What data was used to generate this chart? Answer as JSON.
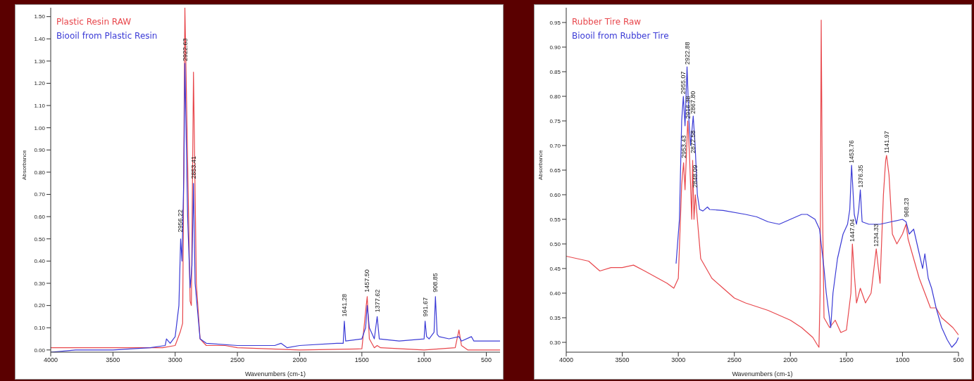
{
  "chart_data": [
    {
      "type": "line",
      "xlabel": "Wavenumbers (cm-1)",
      "ylabel": "Absorbance",
      "legend": "top left",
      "xlim": [
        4000,
        390
      ],
      "xticks": [
        4000,
        3500,
        3000,
        2500,
        2000,
        1500,
        1000,
        500
      ],
      "ylim": [
        -0.01,
        1.54
      ],
      "yticks": [
        {
          "value": 0,
          "label": "0.00"
        },
        {
          "value": 0.1,
          "label": "0.10"
        },
        {
          "value": 0.2,
          "label": "0.20"
        },
        {
          "value": 0.3,
          "label": "0.30"
        },
        {
          "value": 0.4,
          "label": "0.40"
        },
        {
          "value": 0.5,
          "label": "0.50"
        },
        {
          "value": 0.6,
          "label": "0.60"
        },
        {
          "value": 0.7,
          "label": "0.70"
        },
        {
          "value": 0.8,
          "label": "0.80"
        },
        {
          "value": 0.9,
          "label": "0.90"
        },
        {
          "value": 1.0,
          "label": "1.00"
        },
        {
          "value": 1.1,
          "label": "1.10"
        },
        {
          "value": 1.2,
          "label": "1.20"
        },
        {
          "value": 1.3,
          "label": "1.30"
        },
        {
          "value": 1.4,
          "label": "1.40"
        },
        {
          "value": 1.5,
          "label": "1.50"
        }
      ],
      "series": [
        {
          "name": "Plastic Resin RAW",
          "color": "#e8474c",
          "x": [
            4000,
            3500,
            3100,
            3000,
            2960,
            2940,
            2922,
            2880,
            2870,
            2853,
            2830,
            2800,
            2750,
            2600,
            2500,
            2000,
            1500,
            1465,
            1457,
            1440,
            1400,
            1377,
            1350,
            1000,
            750,
            720,
            700,
            650,
            390
          ],
          "values": [
            0.01,
            0.01,
            0.01,
            0.02,
            0.08,
            0.12,
            1.54,
            0.22,
            0.2,
            1.25,
            0.3,
            0.05,
            0.02,
            0.02,
            0.01,
            0.0,
            0.005,
            0.2,
            0.24,
            0.05,
            0.01,
            0.02,
            0.01,
            0.0,
            0.01,
            0.09,
            0.02,
            0.0,
            0.0
          ]
        },
        {
          "name": "Biooil from Plastic Resin",
          "color": "#3b3bd6",
          "x": [
            4000,
            3800,
            3500,
            3200,
            3080,
            3070,
            3040,
            3000,
            2970,
            2956,
            2945,
            2930,
            2922,
            2900,
            2880,
            2865,
            2853,
            2840,
            2800,
            2750,
            2500,
            2200,
            2150,
            2100,
            2000,
            1700,
            1650,
            1641,
            1630,
            1500,
            1470,
            1457,
            1440,
            1400,
            1377,
            1360,
            1200,
            1000,
            992,
            980,
            960,
            920,
            909,
            895,
            880,
            800,
            720,
            700,
            620,
            600,
            390
          ],
          "values": [
            -0.01,
            0.0,
            0.0,
            0.01,
            0.02,
            0.05,
            0.03,
            0.06,
            0.2,
            0.5,
            0.4,
            0.8,
            1.29,
            0.6,
            0.28,
            0.38,
            0.75,
            0.3,
            0.05,
            0.03,
            0.02,
            0.02,
            0.03,
            0.01,
            0.02,
            0.03,
            0.03,
            0.13,
            0.04,
            0.05,
            0.1,
            0.2,
            0.1,
            0.05,
            0.15,
            0.05,
            0.04,
            0.05,
            0.13,
            0.06,
            0.05,
            0.08,
            0.24,
            0.07,
            0.06,
            0.05,
            0.06,
            0.04,
            0.06,
            0.04,
            0.04
          ]
        }
      ],
      "annotations": [
        {
          "text": "2956.22",
          "x": 2956,
          "y": 0.52
        },
        {
          "text": "2922.63",
          "x": 2922,
          "y": 1.29
        },
        {
          "text": "2853.41",
          "x": 2853,
          "y": 0.76
        },
        {
          "text": "1641.28",
          "x": 1641,
          "y": 0.14
        },
        {
          "text": "1457.50",
          "x": 1457,
          "y": 0.25
        },
        {
          "text": "1377.62",
          "x": 1377,
          "y": 0.16
        },
        {
          "text": "991.67",
          "x": 992,
          "y": 0.14
        },
        {
          "text": "908.85",
          "x": 909,
          "y": 0.25
        }
      ]
    },
    {
      "type": "line",
      "xlabel": "Wavenumbers (cm-1)",
      "ylabel": "Absorbance",
      "legend": "top left",
      "xlim": [
        4000,
        500
      ],
      "xticks": [
        4000,
        3500,
        3000,
        2500,
        2000,
        1500,
        1000,
        500
      ],
      "ylim": [
        0.28,
        0.98
      ],
      "yticks": [
        {
          "value": 0.3,
          "label": "0.30"
        },
        {
          "value": 0.35,
          "label": "0.35"
        },
        {
          "value": 0.4,
          "label": "0.40"
        },
        {
          "value": 0.45,
          "label": "0.45"
        },
        {
          "value": 0.5,
          "label": "0.50"
        },
        {
          "value": 0.55,
          "label": "0.55"
        },
        {
          "value": 0.6,
          "label": "0.60"
        },
        {
          "value": 0.65,
          "label": "0.65"
        },
        {
          "value": 0.7,
          "label": "0.70"
        },
        {
          "value": 0.75,
          "label": "0.75"
        },
        {
          "value": 0.8,
          "label": "0.80"
        },
        {
          "value": 0.85,
          "label": "0.85"
        },
        {
          "value": 0.9,
          "label": "0.90"
        },
        {
          "value": 0.95,
          "label": "0.95"
        }
      ],
      "series": [
        {
          "name": "Rubber Tire Raw",
          "color": "#e8474c",
          "x": [
            4000,
            3800,
            3700,
            3600,
            3500,
            3400,
            3300,
            3100,
            3040,
            3000,
            2970,
            2953,
            2940,
            2916,
            2900,
            2880,
            2872,
            2860,
            2848,
            2830,
            2800,
            2700,
            2600,
            2500,
            2400,
            2200,
            2000,
            1900,
            1800,
            1760,
            1745,
            1735,
            1725,
            1715,
            1700,
            1650,
            1600,
            1550,
            1500,
            1460,
            1447,
            1430,
            1410,
            1376,
            1330,
            1280,
            1234,
            1200,
            1170,
            1150,
            1142,
            1120,
            1090,
            1050,
            1000,
            968,
            950,
            900,
            850,
            800,
            750,
            700,
            650,
            600,
            550,
            500
          ],
          "values": [
            0.475,
            0.465,
            0.445,
            0.452,
            0.452,
            0.457,
            0.445,
            0.42,
            0.41,
            0.43,
            0.62,
            0.665,
            0.61,
            0.75,
            0.68,
            0.55,
            0.67,
            0.55,
            0.6,
            0.55,
            0.47,
            0.43,
            0.41,
            0.39,
            0.38,
            0.365,
            0.345,
            0.33,
            0.31,
            0.295,
            0.29,
            0.4,
            0.955,
            0.6,
            0.35,
            0.33,
            0.345,
            0.32,
            0.325,
            0.4,
            0.5,
            0.44,
            0.38,
            0.41,
            0.38,
            0.4,
            0.49,
            0.42,
            0.6,
            0.67,
            0.68,
            0.64,
            0.52,
            0.5,
            0.52,
            0.54,
            0.51,
            0.47,
            0.43,
            0.4,
            0.37,
            0.37,
            0.35,
            0.34,
            0.33,
            0.315
          ]
        },
        {
          "name": "Biooil from Rubber Tire",
          "color": "#3b3bd6",
          "x": [
            3020,
            2990,
            2970,
            2955,
            2940,
            2922,
            2905,
            2890,
            2867,
            2850,
            2830,
            2810,
            2780,
            2740,
            2720,
            2600,
            2400,
            2300,
            2200,
            2100,
            2000,
            1900,
            1850,
            1780,
            1740,
            1700,
            1680,
            1640,
            1620,
            1580,
            1530,
            1490,
            1470,
            1454,
            1430,
            1410,
            1390,
            1376,
            1360,
            1300,
            1200,
            1100,
            1000,
            968,
            940,
            900,
            850,
            820,
            800,
            770,
            740,
            700,
            650,
            600,
            560,
            520,
            500
          ],
          "values": [
            0.46,
            0.55,
            0.75,
            0.8,
            0.74,
            0.86,
            0.75,
            0.7,
            0.76,
            0.7,
            0.6,
            0.57,
            0.567,
            0.575,
            0.57,
            0.568,
            0.56,
            0.555,
            0.545,
            0.54,
            0.55,
            0.56,
            0.56,
            0.55,
            0.53,
            0.45,
            0.4,
            0.33,
            0.4,
            0.47,
            0.52,
            0.54,
            0.57,
            0.66,
            0.56,
            0.54,
            0.57,
            0.61,
            0.545,
            0.54,
            0.54,
            0.545,
            0.55,
            0.545,
            0.52,
            0.53,
            0.48,
            0.45,
            0.48,
            0.43,
            0.41,
            0.37,
            0.33,
            0.305,
            0.29,
            0.3,
            0.31
          ]
        }
      ],
      "annotations": [
        {
          "text": "2955.07",
          "x": 2955,
          "y": 0.8
        },
        {
          "text": "2922.88",
          "x": 2922,
          "y": 0.86
        },
        {
          "text": "2916.38",
          "x": 2916,
          "y": 0.75
        },
        {
          "text": "2867.80",
          "x": 2867,
          "y": 0.76
        },
        {
          "text": "2953.43",
          "x": 2953,
          "y": 0.67
        },
        {
          "text": "2872.58",
          "x": 2872,
          "y": 0.68
        },
        {
          "text": "2848.09",
          "x": 2848,
          "y": 0.61
        },
        {
          "text": "1453.76",
          "x": 1454,
          "y": 0.66
        },
        {
          "text": "1376.35",
          "x": 1376,
          "y": 0.61
        },
        {
          "text": "1447.04",
          "x": 1447,
          "y": 0.5
        },
        {
          "text": "1234.33",
          "x": 1234,
          "y": 0.49
        },
        {
          "text": "1141.97",
          "x": 1142,
          "y": 0.68
        },
        {
          "text": "968.23",
          "x": 968,
          "y": 0.55
        }
      ]
    }
  ]
}
